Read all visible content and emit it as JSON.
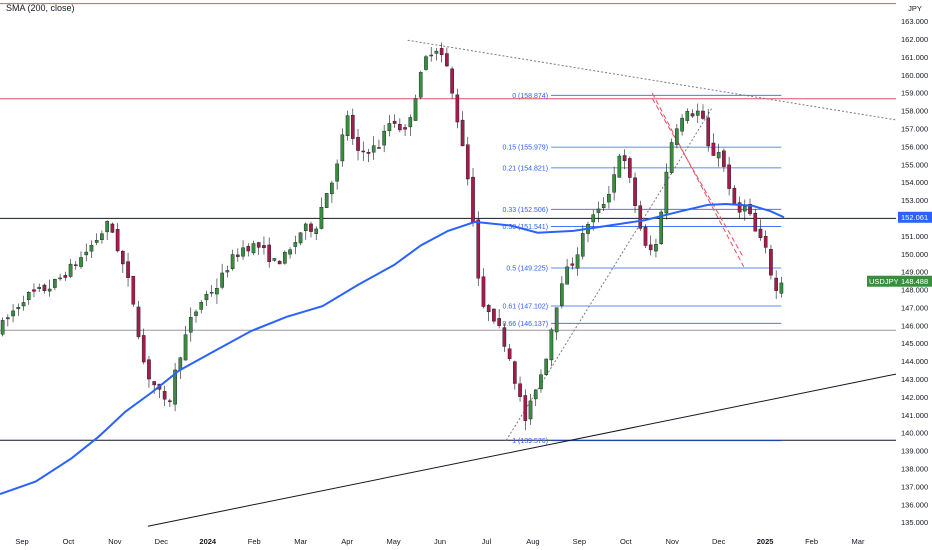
{
  "indicator": {
    "label": "SMA (200, close)"
  },
  "chart_data": {
    "type": "candlestick",
    "symbol": "USDJPY",
    "currency": "JPY",
    "last_price_label": "148.488",
    "last_price": 148.488,
    "sma_last_label": "152.061",
    "sma_last": 152.061,
    "ylim": [
      134.7,
      164.2
    ],
    "y_ticks": [
      "135.000",
      "136.000",
      "137.000",
      "138.000",
      "139.000",
      "140.000",
      "141.000",
      "142.000",
      "143.000",
      "144.000",
      "145.000",
      "146.000",
      "147.000",
      "148.000",
      "149.000",
      "150.000",
      "151.000",
      "152.000",
      "153.000",
      "154.000",
      "155.000",
      "156.000",
      "157.000",
      "158.000",
      "159.000",
      "160.000",
      "161.000",
      "162.000",
      "163.000"
    ],
    "x_ticks": [
      {
        "label": "Sep",
        "bold": false
      },
      {
        "label": "Oct",
        "bold": false
      },
      {
        "label": "Nov",
        "bold": false
      },
      {
        "label": "Dec",
        "bold": false
      },
      {
        "label": "2024",
        "bold": true
      },
      {
        "label": "Feb",
        "bold": false
      },
      {
        "label": "Mar",
        "bold": false
      },
      {
        "label": "Apr",
        "bold": false
      },
      {
        "label": "May",
        "bold": false
      },
      {
        "label": "Jun",
        "bold": false
      },
      {
        "label": "Jul",
        "bold": false
      },
      {
        "label": "Aug",
        "bold": false
      },
      {
        "label": "Sep",
        "bold": false
      },
      {
        "label": "Oct",
        "bold": false
      },
      {
        "label": "Nov",
        "bold": false
      },
      {
        "label": "Dec",
        "bold": false
      },
      {
        "label": "2025",
        "bold": true
      },
      {
        "label": "Feb",
        "bold": false
      },
      {
        "label": "Mar",
        "bold": false
      }
    ],
    "horizontal_levels": [
      {
        "price": 164.0,
        "color": "#e05260"
      },
      {
        "price": 158.68,
        "color": "#e05260"
      },
      {
        "price": 152.0,
        "color": "#131722"
      },
      {
        "price": 145.75,
        "color": "#9598a1"
      },
      {
        "price": 139.6,
        "color": "#131722"
      }
    ],
    "fibonacci": {
      "levels": [
        {
          "label": "0 (158.874)",
          "price": 158.874
        },
        {
          "label": "0.15 (155.979)",
          "price": 155.979
        },
        {
          "label": "0.21 (154.821)",
          "price": 154.821
        },
        {
          "label": "0.33 (152.506)",
          "price": 152.506
        },
        {
          "label": "0.38 (151.541)",
          "price": 151.541
        },
        {
          "label": "0.5 (149.225)",
          "price": 149.225
        },
        {
          "label": "0.61 (147.102)",
          "price": 147.102
        },
        {
          "label": "0.66 (146.137)",
          "price": 146.137
        },
        {
          "label": "1 (139.576)",
          "price": 139.576
        }
      ],
      "color": "#2962ff"
    },
    "trendlines": [
      {
        "color": "#131722",
        "style": "solid",
        "from": [
          0.165,
          134.8
        ],
        "to": [
          1.0,
          143.3
        ]
      },
      {
        "color": "#787b86",
        "style": "dotted",
        "from": [
          0.455,
          161.95
        ],
        "to": [
          1.0,
          157.5
        ]
      },
      {
        "color": "#787b86",
        "style": "dotted",
        "from": [
          0.565,
          139.6
        ],
        "to": [
          0.795,
          158.2
        ]
      },
      {
        "color": "#e05260",
        "style": "dashed",
        "from": [
          0.728,
          159.0
        ],
        "to": [
          0.83,
          149.3
        ]
      },
      {
        "color": "#e05260",
        "style": "dashed",
        "from": [
          0.728,
          158.7
        ],
        "to": [
          0.83,
          149.8
        ]
      }
    ],
    "price_path": [
      [
        0.0,
        145.7
      ],
      [
        0.03,
        147.6
      ],
      [
        0.06,
        148.2
      ],
      [
        0.09,
        149.6
      ],
      [
        0.112,
        150.9
      ],
      [
        0.125,
        151.8
      ],
      [
        0.135,
        150.2
      ],
      [
        0.15,
        147.8
      ],
      [
        0.165,
        143.5
      ],
      [
        0.18,
        142.3
      ],
      [
        0.19,
        141.3
      ],
      [
        0.2,
        143.8
      ],
      [
        0.215,
        146.2
      ],
      [
        0.23,
        147.6
      ],
      [
        0.245,
        148.2
      ],
      [
        0.26,
        149.6
      ],
      [
        0.275,
        150.4
      ],
      [
        0.29,
        150.5
      ],
      [
        0.31,
        149.5
      ],
      [
        0.325,
        150.0
      ],
      [
        0.34,
        151.4
      ],
      [
        0.355,
        151.5
      ],
      [
        0.365,
        153.2
      ],
      [
        0.38,
        155.0
      ],
      [
        0.39,
        158.0
      ],
      [
        0.4,
        155.5
      ],
      [
        0.41,
        155.8
      ],
      [
        0.425,
        156.0
      ],
      [
        0.44,
        157.6
      ],
      [
        0.455,
        156.8
      ],
      [
        0.47,
        159.5
      ],
      [
        0.478,
        160.9
      ],
      [
        0.488,
        161.7
      ],
      [
        0.5,
        160.8
      ],
      [
        0.51,
        158.3
      ],
      [
        0.52,
        156.0
      ],
      [
        0.53,
        152.5
      ],
      [
        0.54,
        146.8
      ],
      [
        0.55,
        147.0
      ],
      [
        0.56,
        145.8
      ],
      [
        0.57,
        144.6
      ],
      [
        0.58,
        142.5
      ],
      [
        0.59,
        140.6
      ],
      [
        0.6,
        142.5
      ],
      [
        0.61,
        143.7
      ],
      [
        0.62,
        146.3
      ],
      [
        0.63,
        148.6
      ],
      [
        0.645,
        149.8
      ],
      [
        0.66,
        151.9
      ],
      [
        0.672,
        152.4
      ],
      [
        0.685,
        153.8
      ],
      [
        0.695,
        155.8
      ],
      [
        0.705,
        154.3
      ],
      [
        0.715,
        152.0
      ],
      [
        0.725,
        150.0
      ],
      [
        0.735,
        150.5
      ],
      [
        0.745,
        154.0
      ],
      [
        0.755,
        157.1
      ],
      [
        0.77,
        157.8
      ],
      [
        0.785,
        158.0
      ],
      [
        0.795,
        155.5
      ],
      [
        0.805,
        155.8
      ],
      [
        0.815,
        154.2
      ],
      [
        0.825,
        152.0
      ],
      [
        0.835,
        153.0
      ],
      [
        0.845,
        151.3
      ],
      [
        0.855,
        150.6
      ],
      [
        0.862,
        149.3
      ],
      [
        0.868,
        147.8
      ],
      [
        0.875,
        148.5
      ]
    ],
    "sma_path": [
      [
        0.0,
        136.6
      ],
      [
        0.04,
        137.3
      ],
      [
        0.08,
        138.6
      ],
      [
        0.11,
        139.8
      ],
      [
        0.14,
        141.2
      ],
      [
        0.17,
        142.3
      ],
      [
        0.2,
        143.5
      ],
      [
        0.24,
        144.6
      ],
      [
        0.28,
        145.7
      ],
      [
        0.32,
        146.5
      ],
      [
        0.36,
        147.1
      ],
      [
        0.4,
        148.3
      ],
      [
        0.44,
        149.4
      ],
      [
        0.47,
        150.5
      ],
      [
        0.5,
        151.3
      ],
      [
        0.53,
        151.8
      ],
      [
        0.57,
        151.6
      ],
      [
        0.6,
        151.2
      ],
      [
        0.64,
        151.3
      ],
      [
        0.68,
        151.6
      ],
      [
        0.72,
        151.9
      ],
      [
        0.76,
        152.4
      ],
      [
        0.79,
        152.75
      ],
      [
        0.81,
        152.8
      ],
      [
        0.84,
        152.7
      ],
      [
        0.86,
        152.4
      ],
      [
        0.875,
        152.06
      ]
    ],
    "colors": {
      "up": "#388e3c",
      "down": "#a51c4b",
      "sma": "#2962ff",
      "last_tag": "#388e3c"
    }
  }
}
